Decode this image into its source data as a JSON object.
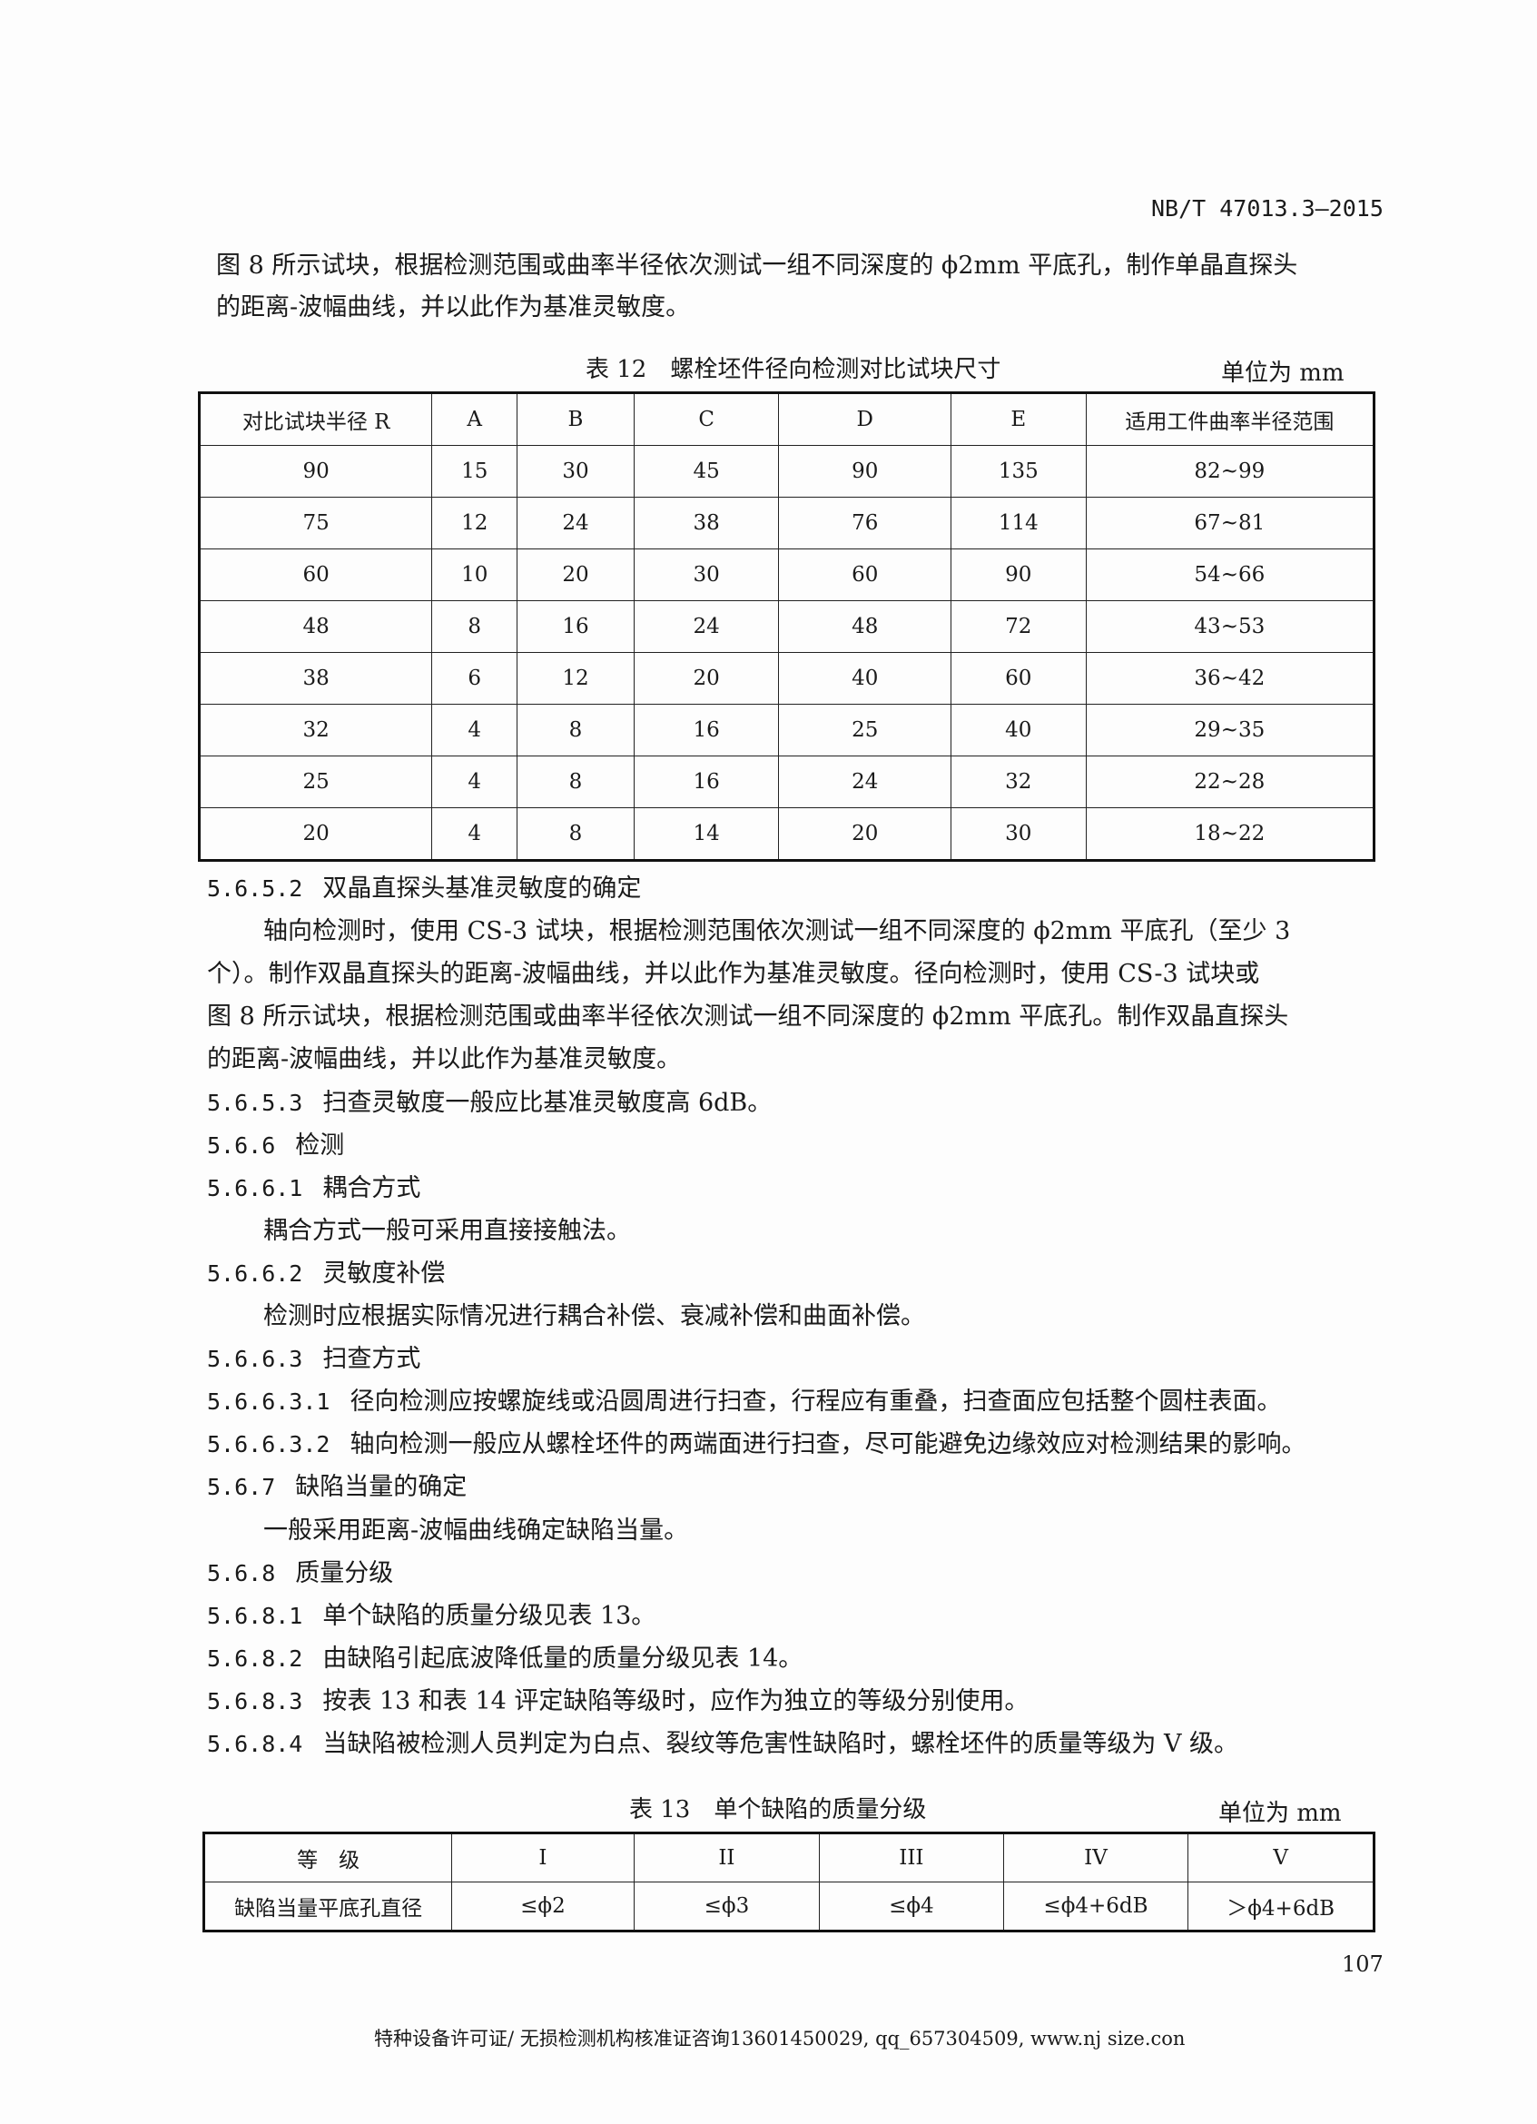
{
  "header": {
    "standard_code": "NB/T 47013.3—2015"
  },
  "intro": [
    "图 8 所示试块，根据检测范围或曲率半径依次测试一组不同深度的 ϕ2mm 平底孔，制作单晶直探头",
    "的距离-波幅曲线，并以此作为基准灵敏度。"
  ],
  "table12": {
    "caption": "表 12　螺栓坯件径向检测对比试块尺寸",
    "unit": "单位为 mm",
    "headers": [
      "对比试块半径 R",
      "A",
      "B",
      "C",
      "D",
      "E",
      "适用工件曲率半径范围"
    ],
    "rows": [
      [
        "90",
        "15",
        "30",
        "45",
        "90",
        "135",
        "82~99"
      ],
      [
        "75",
        "12",
        "24",
        "38",
        "76",
        "114",
        "67~81"
      ],
      [
        "60",
        "10",
        "20",
        "30",
        "60",
        "90",
        "54~66"
      ],
      [
        "48",
        "8",
        "16",
        "24",
        "48",
        "72",
        "43~53"
      ],
      [
        "38",
        "6",
        "12",
        "20",
        "40",
        "60",
        "36~42"
      ],
      [
        "32",
        "4",
        "8",
        "16",
        "25",
        "40",
        "29~35"
      ],
      [
        "25",
        "4",
        "8",
        "16",
        "24",
        "32",
        "22~28"
      ],
      [
        "20",
        "4",
        "8",
        "14",
        "20",
        "30",
        "18~22"
      ]
    ]
  },
  "body": [
    {
      "num": "5.6.5.2",
      "text": "双晶直探头基准灵敏度的确定",
      "indent": 0
    },
    {
      "num": "",
      "text": "轴向检测时，使用 CS-3 试块，根据检测范围依次测试一组不同深度的 ϕ2mm 平底孔（至少 3",
      "indent": 1
    },
    {
      "num": "",
      "text": "个）。制作双晶直探头的距离-波幅曲线，并以此作为基准灵敏度。径向检测时，使用 CS-3 试块或",
      "indent": 0
    },
    {
      "num": "",
      "text": "图 8 所示试块，根据检测范围或曲率半径依次测试一组不同深度的 ϕ2mm 平底孔。制作双晶直探头",
      "indent": 0
    },
    {
      "num": "",
      "text": "的距离-波幅曲线，并以此作为基准灵敏度。",
      "indent": 0
    },
    {
      "num": "5.6.5.3",
      "text": "扫查灵敏度一般应比基准灵敏度高 6dB。",
      "indent": 0
    },
    {
      "num": "5.6.6",
      "text": "检测",
      "indent": 0
    },
    {
      "num": "5.6.6.1",
      "text": "耦合方式",
      "indent": 0
    },
    {
      "num": "",
      "text": "耦合方式一般可采用直接接触法。",
      "indent": 1
    },
    {
      "num": "5.6.6.2",
      "text": "灵敏度补偿",
      "indent": 0
    },
    {
      "num": "",
      "text": "检测时应根据实际情况进行耦合补偿、衰减补偿和曲面补偿。",
      "indent": 1
    },
    {
      "num": "5.6.6.3",
      "text": "扫查方式",
      "indent": 0
    },
    {
      "num": "5.6.6.3.1",
      "text": "径向检测应按螺旋线或沿圆周进行扫查，行程应有重叠，扫查面应包括整个圆柱表面。",
      "indent": 0
    },
    {
      "num": "5.6.6.3.2",
      "text": "轴向检测一般应从螺栓坯件的两端面进行扫查，尽可能避免边缘效应对检测结果的影响。",
      "indent": 0
    },
    {
      "num": "5.6.7",
      "text": "缺陷当量的确定",
      "indent": 0
    },
    {
      "num": "",
      "text": "一般采用距离-波幅曲线确定缺陷当量。",
      "indent": 1
    },
    {
      "num": "5.6.8",
      "text": "质量分级",
      "indent": 0
    },
    {
      "num": "5.6.8.1",
      "text": "单个缺陷的质量分级见表 13。",
      "indent": 0
    },
    {
      "num": "5.6.8.2",
      "text": "由缺陷引起底波降低量的质量分级见表 14。",
      "indent": 0
    },
    {
      "num": "5.6.8.3",
      "text": "按表 13 和表 14 评定缺陷等级时，应作为独立的等级分别使用。",
      "indent": 0
    },
    {
      "num": "5.6.8.4",
      "text": "当缺陷被检测人员判定为白点、裂纹等危害性缺陷时，螺栓坯件的质量等级为 V 级。",
      "indent": 0
    }
  ],
  "table13": {
    "caption": "表 13　单个缺陷的质量分级",
    "unit": "单位为 mm",
    "headers": [
      "等　级",
      "I",
      "II",
      "III",
      "IV",
      "V"
    ],
    "rows": [
      [
        "缺陷当量平底孔直径",
        "≤ϕ2",
        "≤ϕ3",
        "≤ϕ4",
        "≤ϕ4+6dB",
        "＞ϕ4+6dB"
      ]
    ]
  },
  "page_number": "107",
  "footer": "特种设备许可证/ 无损检测机构核准证咨询13601450029, qq_657304509, www.nj size.con"
}
